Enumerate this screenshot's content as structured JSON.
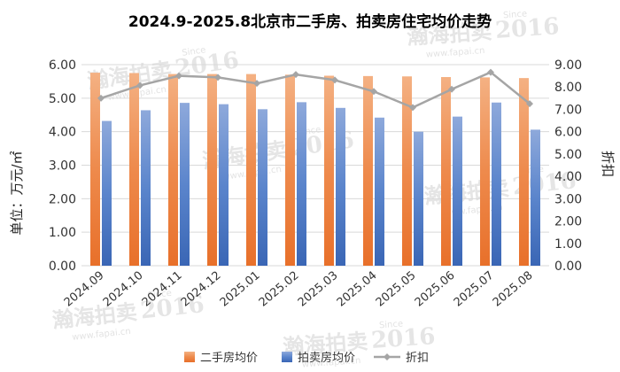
{
  "chart_data": {
    "type": "bar",
    "title": "2024.9-2025.8北京市二手房、拍卖房住宅均价走势",
    "categories": [
      "2024.09",
      "2024.10",
      "2024.11",
      "2024.12",
      "2025.01",
      "2025.02",
      "2025.03",
      "2025.04",
      "2025.05",
      "2025.06",
      "2025.07",
      "2025.08"
    ],
    "series": [
      {
        "name": "二手房均价",
        "type": "bar",
        "axis": "left",
        "color": "#ED7D31",
        "values": [
          5.76,
          5.75,
          5.72,
          5.72,
          5.72,
          5.7,
          5.67,
          5.66,
          5.65,
          5.63,
          5.62,
          5.6
        ]
      },
      {
        "name": "拍卖房均价",
        "type": "bar",
        "axis": "left",
        "color": "#4472C4",
        "values": [
          4.32,
          4.64,
          4.86,
          4.82,
          4.67,
          4.88,
          4.71,
          4.42,
          4.0,
          4.45,
          4.87,
          4.06
        ]
      },
      {
        "name": "折扣",
        "type": "line",
        "axis": "right",
        "color": "#A5A5A5",
        "values": [
          7.5,
          8.07,
          8.5,
          8.43,
          8.16,
          8.56,
          8.31,
          7.8,
          7.08,
          7.9,
          8.66,
          7.25
        ]
      }
    ],
    "ylabel": "单位：万元/㎡",
    "ylabel_right": "折扣",
    "ylim": [
      0,
      6
    ],
    "ylim_right": [
      0,
      9
    ],
    "yticks": [
      "0.00",
      "1.00",
      "2.00",
      "3.00",
      "4.00",
      "5.00",
      "6.00"
    ],
    "yticks_right": [
      "0.00",
      "1.00",
      "2.00",
      "3.00",
      "4.00",
      "5.00",
      "6.00",
      "7.00",
      "8.00",
      "9.00"
    ],
    "grid": true,
    "legend_position": "bottom"
  },
  "watermark": {
    "brand": "瀚海拍卖",
    "year": "2016",
    "since": "Since",
    "url": "www.fapai.cn"
  }
}
